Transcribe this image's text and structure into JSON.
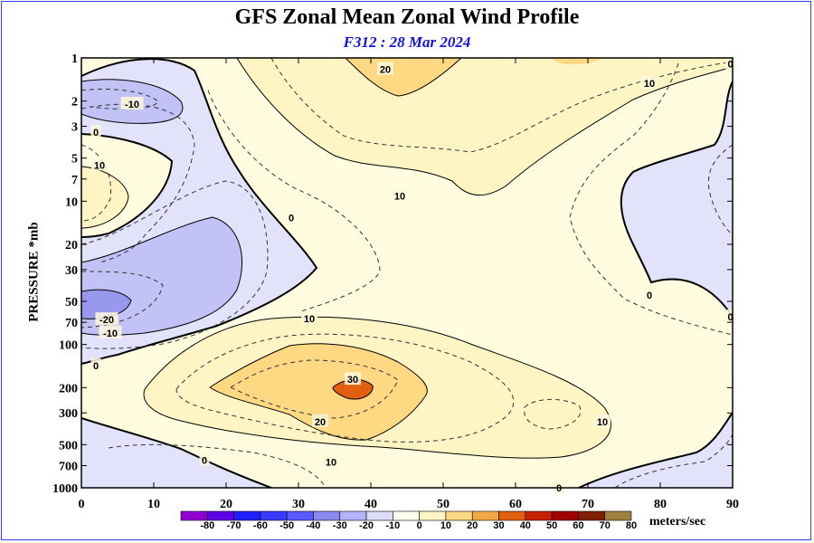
{
  "chart_data": {
    "type": "contour",
    "title": "GFS Zonal Mean Zonal Wind Profile",
    "subtitle": "F312 : 28 Mar 2024",
    "xlabel": "",
    "ylabel": "PRESSURE *mb",
    "xlim": [
      0,
      90
    ],
    "ylim": [
      1000,
      1
    ],
    "x_ticks": [
      0,
      10,
      20,
      30,
      40,
      50,
      60,
      70,
      80,
      90
    ],
    "y_ticks": [
      1,
      2,
      3,
      5,
      7,
      10,
      20,
      30,
      50,
      70,
      100,
      200,
      300,
      500,
      700,
      1000
    ],
    "contour_interval": 5,
    "contour_labels": [
      {
        "value": "20",
        "x": 42,
        "p": 1.2
      },
      {
        "value": "10",
        "x": 78.5,
        "p": 1.5
      },
      {
        "value": "0",
        "x": 89.7,
        "p": 1.1
      },
      {
        "value": "-10",
        "x": 7,
        "p": 2.1
      },
      {
        "value": "0",
        "x": 2,
        "p": 3.3
      },
      {
        "value": "10",
        "x": 2.5,
        "p": 5.6
      },
      {
        "value": "10",
        "x": 44,
        "p": 9.2
      },
      {
        "value": "0",
        "x": 29,
        "p": 13
      },
      {
        "value": "0",
        "x": 78.5,
        "p": 45
      },
      {
        "value": "0",
        "x": 89.7,
        "p": 64
      },
      {
        "value": "10",
        "x": 31.5,
        "p": 66
      },
      {
        "value": "-20",
        "x": 3.5,
        "p": 67
      },
      {
        "value": "-10",
        "x": 4,
        "p": 83
      },
      {
        "value": "0",
        "x": 2,
        "p": 140
      },
      {
        "value": "30",
        "x": 37.5,
        "p": 175
      },
      {
        "value": "20",
        "x": 33,
        "p": 345
      },
      {
        "value": "10",
        "x": 72,
        "p": 345
      },
      {
        "value": "0",
        "x": 17,
        "p": 640
      },
      {
        "value": "10",
        "x": 34.5,
        "p": 660
      },
      {
        "value": "0",
        "x": 66,
        "p": 1000
      }
    ],
    "colorbar": {
      "levels": [
        -80,
        -70,
        -60,
        -50,
        -40,
        -30,
        -20,
        -10,
        0,
        10,
        20,
        30,
        40,
        50,
        60,
        70,
        80
      ],
      "colors": [
        "#8f00d0",
        "#6000e8",
        "#2020ff",
        "#3a3aff",
        "#5a5aff",
        "#8a8af0",
        "#b4b4f8",
        "#dcdcfa",
        "#fffff0",
        "#fff4c4",
        "#ffd884",
        "#f0a848",
        "#e06010",
        "#c82000",
        "#a00000",
        "#802000",
        "#a08040"
      ],
      "units": "meters/sec"
    },
    "regions": [
      {
        "range": "0 to 10",
        "color": "#fffce0"
      },
      {
        "range": "10 to 20",
        "color": "#fff4c4"
      },
      {
        "range": "20 to 30",
        "color": "#ffd884"
      },
      {
        "range": "30 to 40",
        "color": "#e06010"
      },
      {
        "range": "0 to -10",
        "color": "#e2e2fa"
      },
      {
        "range": "-10 to -20",
        "color": "#c2c2f6"
      },
      {
        "range": "-20 to -30",
        "color": "#9898ee"
      }
    ]
  }
}
